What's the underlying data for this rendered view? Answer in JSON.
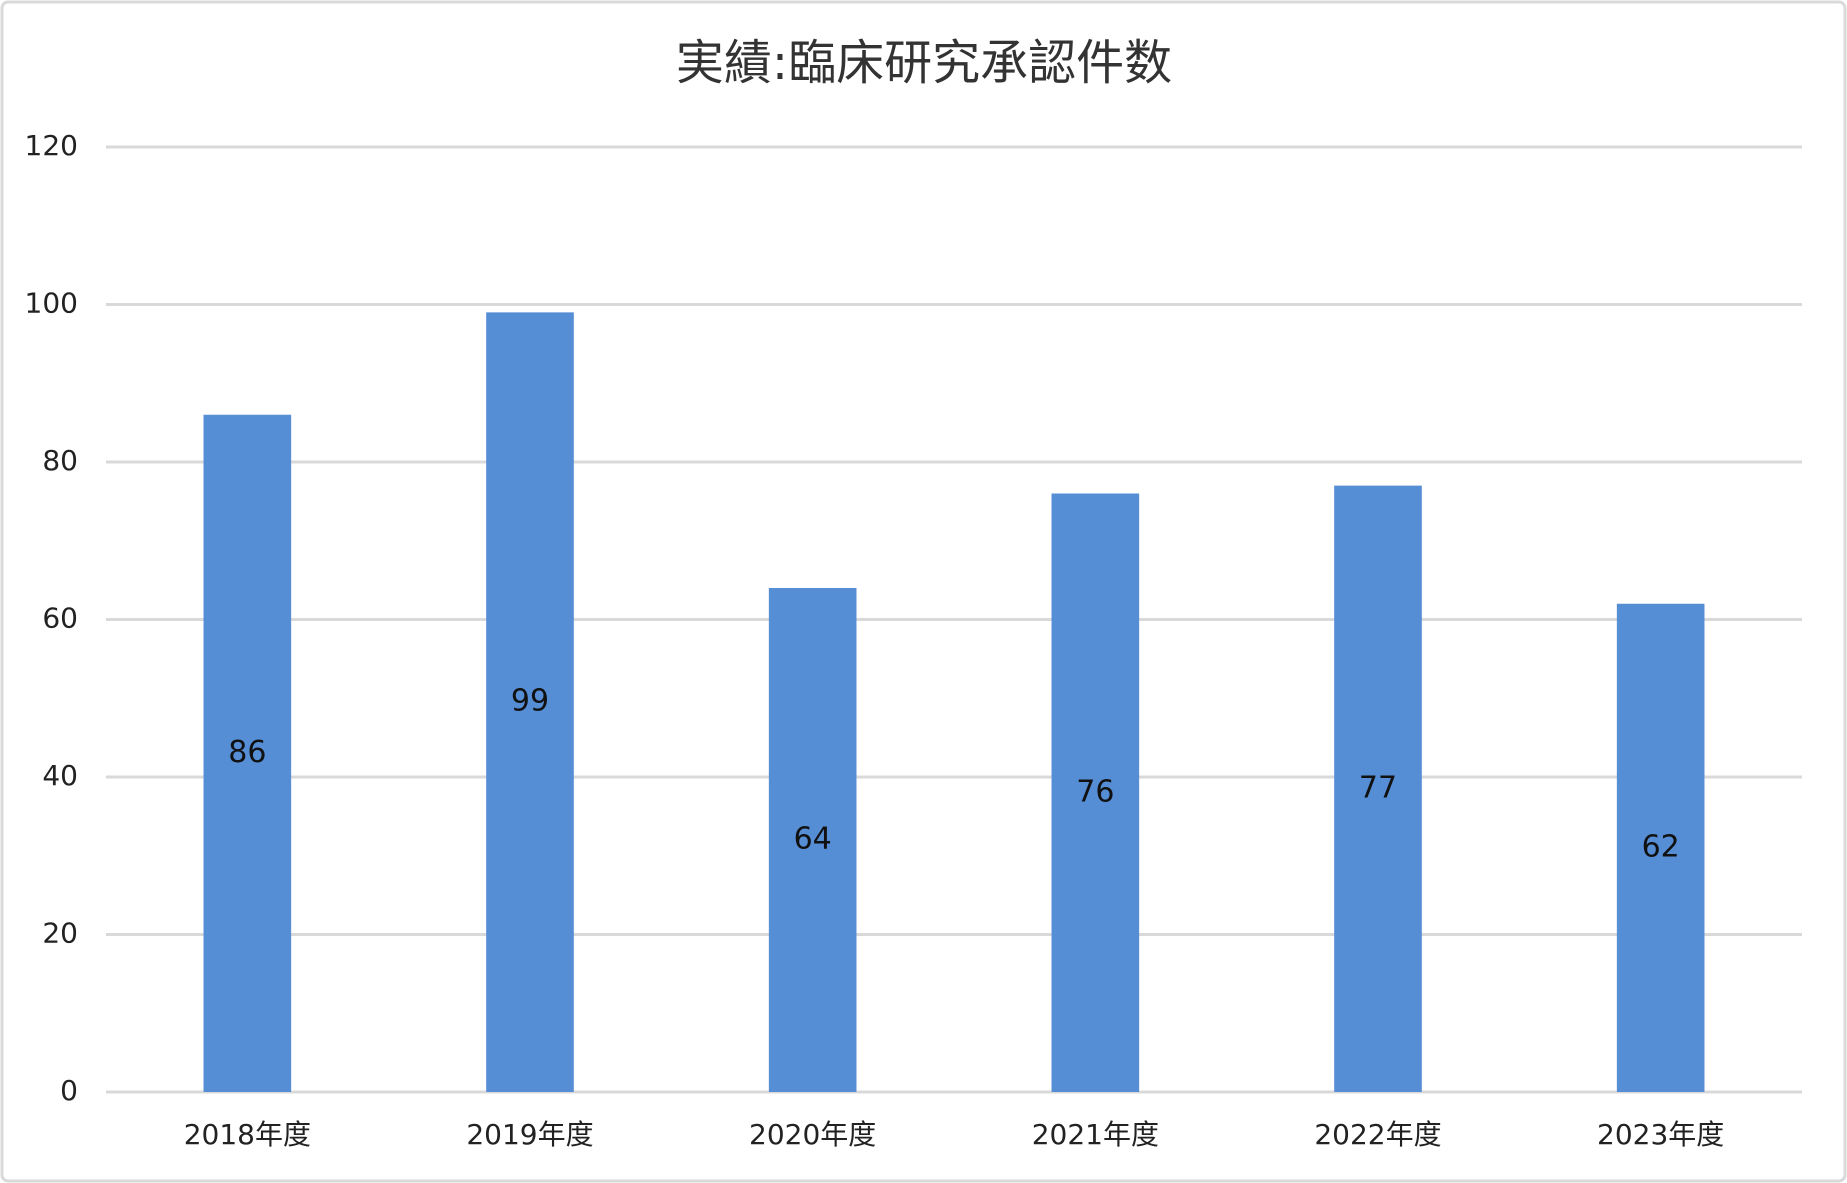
{
  "chart_data": {
    "type": "bar",
    "title": "実績:臨床研究承認件数",
    "categories": [
      "2018年度",
      "2019年度",
      "2020年度",
      "2021年度",
      "2022年度",
      "2023年度"
    ],
    "values": [
      86,
      99,
      64,
      76,
      77,
      62
    ],
    "color": "#558ed5",
    "ylim": [
      0,
      120
    ],
    "yticks": [
      0,
      20,
      40,
      60,
      80,
      100,
      120
    ],
    "grid": true
  }
}
